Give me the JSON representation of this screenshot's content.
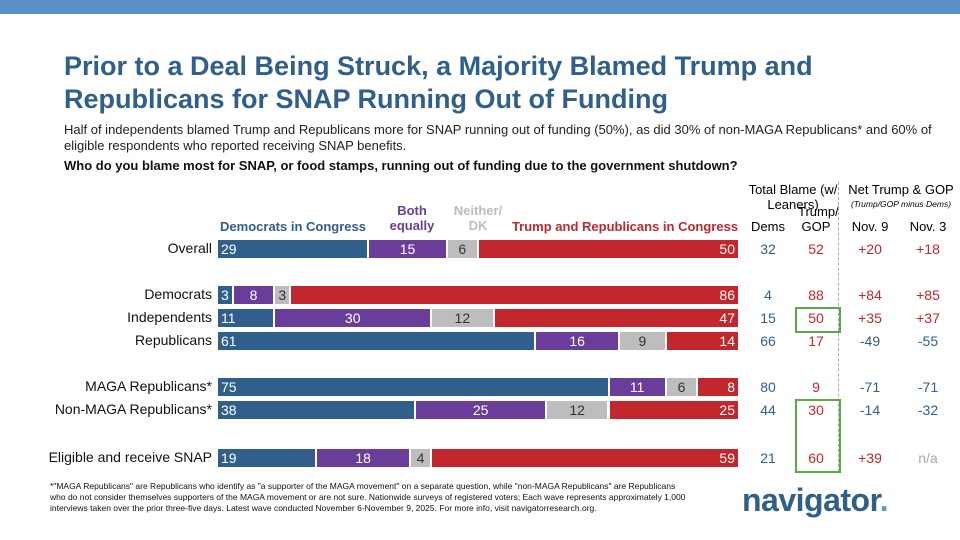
{
  "title": "Prior to a Deal Being Struck, a Majority Blamed Trump and Republicans for SNAP Running Out of Funding",
  "subtitle": "Half of independents blamed Trump and Republicans more for SNAP running out of funding (50%), as did 30% of non-MAGA Republicans* and 60% of eligible respondents who reported receiving SNAP benefits.",
  "question": "Who do you blame most for SNAP, or food stamps, running out of funding due to the government shutdown?",
  "footnote": "*\"MAGA Republicans\" are Republicans who identify as \"a supporter of the MAGA movement\" on a separate question, while \"non-MAGA Republicans\" are Republicans who do not consider themselves supporters of the MAGA movement or are not sure. Nationwide surveys of registered voters; Each wave represents approximately 1,000 interviews taken over the prior three-five days. Latest wave conducted November 6-November 9, 2025. For more info, visit navigatorresearch.org.",
  "logo": "navigator",
  "columns": {
    "total_blame": "Total Blame (w/ Leaners)",
    "dems": "Dems",
    "trump_gop": "Trump/ GOP",
    "net": "Net Trump & GOP",
    "net_sub": "(Trump/GOP minus Dems)",
    "nov9": "Nov. 9",
    "nov3": "Nov. 3"
  },
  "chart_data": {
    "type": "bar",
    "stacked": true,
    "orientation": "horizontal",
    "xlim": [
      0,
      100
    ],
    "series": [
      {
        "name": "Democrats in Congress",
        "color": "#2f5f8a",
        "values": [
          29,
          3,
          11,
          61,
          75,
          38,
          19
        ]
      },
      {
        "name": "Both equally",
        "color": "#6a3d9a",
        "values": [
          15,
          8,
          30,
          16,
          11,
          25,
          18
        ]
      },
      {
        "name": "Neither/ DK",
        "color": "#bdbdbd",
        "values": [
          6,
          3,
          12,
          9,
          6,
          12,
          4
        ]
      },
      {
        "name": "Trump and Republicans in Congress",
        "color": "#c1272d",
        "values": [
          50,
          86,
          47,
          14,
          8,
          25,
          59
        ]
      }
    ],
    "categories": [
      "Overall",
      "Democrats",
      "Independents",
      "Republicans",
      "MAGA Republicans*",
      "Non-MAGA Republicans*",
      "Eligible and receive SNAP"
    ],
    "total_dems": [
      "32",
      "4",
      "15",
      "66",
      "80",
      "44",
      "21"
    ],
    "total_trump_gop": [
      "52",
      "88",
      "50",
      "17",
      "9",
      "30",
      "60"
    ],
    "net_nov9": [
      "+20",
      "+84",
      "+35",
      "-49",
      "-71",
      "-14",
      "+39"
    ],
    "net_nov3": [
      "+18",
      "+85",
      "+37",
      "-55",
      "-71",
      "-32",
      "n/a"
    ]
  }
}
